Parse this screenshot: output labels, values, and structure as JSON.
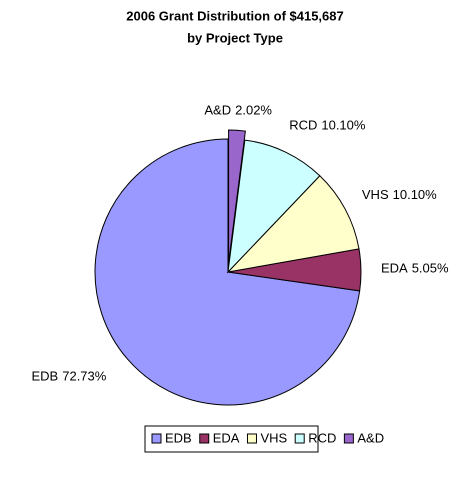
{
  "chart_data": {
    "type": "pie",
    "title": [
      "2006 Grant Distribution of $415,687",
      "by Project Type"
    ],
    "categories": [
      "EDB",
      "EDA",
      "VHS",
      "RCD",
      "A&D"
    ],
    "values": [
      72.73,
      5.05,
      10.1,
      10.1,
      2.02
    ],
    "value_labels": [
      "72.73%",
      "5.05%",
      "10.10%",
      "10.10%",
      "2.02%"
    ],
    "colors": [
      "#9999ff",
      "#993366",
      "#ffffcc",
      "#ccffff",
      "#9966cc"
    ],
    "exploded": [
      "A&D"
    ],
    "legend": "bottom"
  }
}
